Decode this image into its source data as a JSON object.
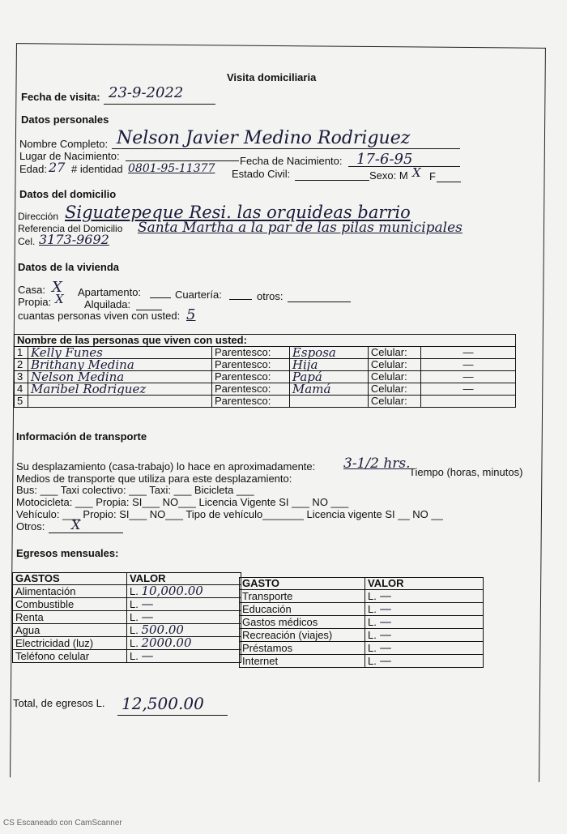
{
  "title": "Visita domiciliaria",
  "fecha_visita": {
    "label": "Fecha de visita:",
    "value": "23-9-2022"
  },
  "datos_personales": {
    "heading": "Datos personales",
    "nombre_label": "Nombre Completo:",
    "nombre": "Nelson Javier Medino Rodriguez",
    "lugar_label": "Lugar de Nacimiento:",
    "fecha_nac_label": "Fecha de Nacimiento:",
    "fecha_nac": "17-6-95",
    "edad_label": "Edad:",
    "edad": "27",
    "identidad_label": "# identidad",
    "identidad": "0801-95-11377",
    "estado_civil_label": "Estado Civil:",
    "sexo_label": "Sexo: M",
    "sexo_m": "X",
    "sexo_f_label": "F"
  },
  "domicilio": {
    "heading": "Datos del domicilio",
    "direccion_label": "Dirección",
    "direccion": "Siguatepeque Resi. las orquideas barrio",
    "referencia_label": "Referencia del Domicilio",
    "referencia": "Santa Martha a la par de las pilas municipales",
    "cel_label": "Cel.",
    "cel": "3173-9692"
  },
  "vivienda": {
    "heading": "Datos de la vivienda",
    "casa_label": "Casa:",
    "casa": "X",
    "apartamento_label": "Apartamento:",
    "cuarteria_label": "Cuartería:",
    "otros_label": "otros:",
    "propia_label": "Propia:",
    "propia": "X",
    "alquilada_label": "Alquilada:",
    "personas_label": "cuantas personas viven con usted:",
    "personas": "5"
  },
  "personas": {
    "header": "Nombre de las personas que viven con usted:",
    "parentesco_label": "Parentesco:",
    "celular_label": "Celular:",
    "rows": [
      {
        "n": "1",
        "nombre": "Kelly Funes",
        "parentesco": "Esposa",
        "celular": "—"
      },
      {
        "n": "2",
        "nombre": "Brithany Medina",
        "parentesco": "Hija",
        "celular": "—"
      },
      {
        "n": "3",
        "nombre": "Nelson Medina",
        "parentesco": "Papá",
        "celular": "—"
      },
      {
        "n": "4",
        "nombre": "Maribel Rodriguez",
        "parentesco": "Mamá",
        "celular": "—"
      },
      {
        "n": "5",
        "nombre": "",
        "parentesco": "",
        "celular": ""
      }
    ]
  },
  "transporte": {
    "heading": "Información de transporte",
    "l1a": "Su desplazamiento (casa-trabajo) lo hace en aproximadamente:",
    "tiempo": "3-1/2 hrs.",
    "l1b": "Tiempo (horas, minutos)",
    "l2": "Medios de transporte que utiliza para este desplazamiento:",
    "l3": "Bus: ___ Taxi colectivo: ___ Taxi: ___ Bicicleta ___",
    "l4": "Motocicleta: ___ Propia: SI___ NO___  Licencia Vigente SI ___ NO ___",
    "l5": "Vehículo: ___ Propio: SI___ NO___ Tipo de vehículo_______ Licencia vigente SI __ NO __",
    "otros_label": "Otros:",
    "otros": "X"
  },
  "egresos": {
    "heading": "Egresos mensuales:",
    "h_gastos": "GASTOS",
    "h_valor": "VALOR",
    "h_gasto": "GASTO",
    "h_valor2": "VALOR",
    "left": [
      {
        "gasto": "Alimentación",
        "valor": "10,000.00"
      },
      {
        "gasto": "Combustible",
        "valor": "—"
      },
      {
        "gasto": "Renta",
        "valor": "—"
      },
      {
        "gasto": "Agua",
        "valor": "500.00"
      },
      {
        "gasto": "Electricidad (luz)",
        "valor": "2000.00"
      },
      {
        "gasto": "Teléfono celular",
        "valor": "—"
      }
    ],
    "right": [
      {
        "gasto": "Transporte",
        "valor": "—"
      },
      {
        "gasto": "Educación",
        "valor": "—"
      },
      {
        "gasto": "Gastos médicos",
        "valor": "—"
      },
      {
        "gasto": "Recreación (viajes)",
        "valor": "—"
      },
      {
        "gasto": "Préstamos",
        "valor": "—"
      },
      {
        "gasto": "Internet",
        "valor": "—"
      }
    ],
    "currency": "L.",
    "total_label": "Total, de egresos L.",
    "total": "12,500.00"
  },
  "footer": "CS Escaneado con CamScanner"
}
